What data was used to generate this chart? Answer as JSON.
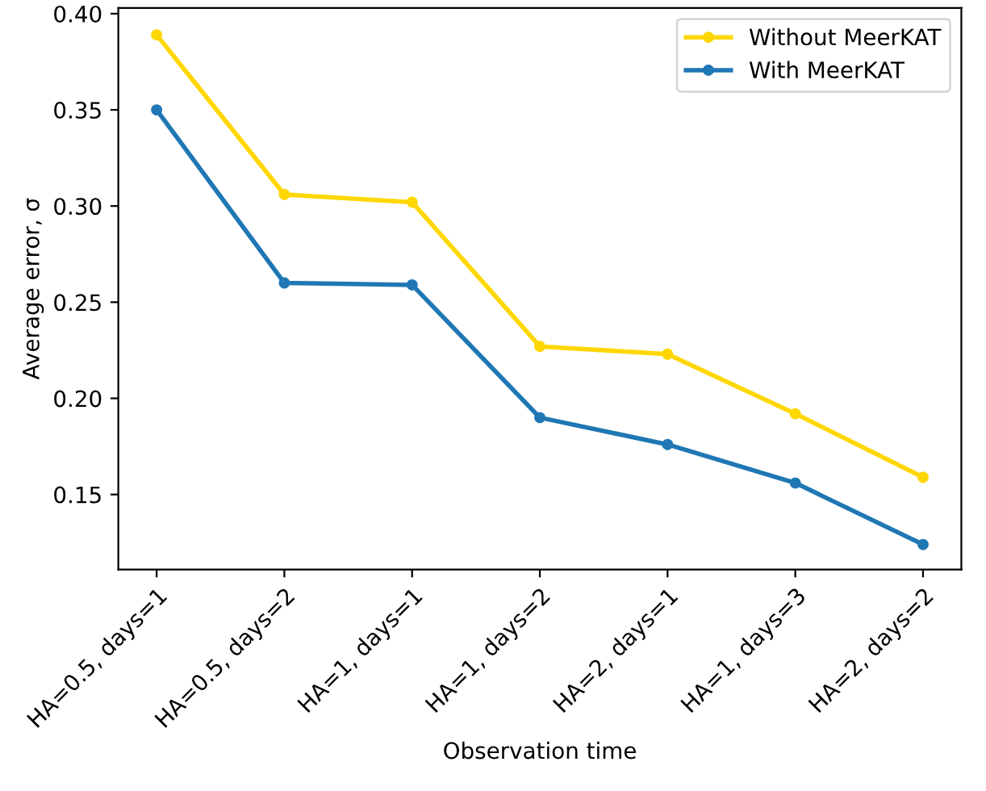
{
  "chart_data": {
    "type": "line",
    "xlabel": "Observation time",
    "ylabel": "Average error, σ",
    "categories": [
      "HA=0.5, days=1",
      "HA=0.5, days=2",
      "HA=1, days=1",
      "HA=1, days=2",
      "HA=2, days=1",
      "HA=1, days=3",
      "HA=2, days=2"
    ],
    "series": [
      {
        "name": "Without MeerKAT",
        "color": "#ffd700",
        "values": [
          0.389,
          0.306,
          0.302,
          0.227,
          0.223,
          0.192,
          0.159
        ]
      },
      {
        "name": "With MeerKAT",
        "color": "#1f77b4",
        "values": [
          0.35,
          0.26,
          0.259,
          0.19,
          0.176,
          0.156,
          0.124
        ]
      }
    ],
    "ylim": [
      0.111,
      0.403
    ],
    "yticks": [
      0.15,
      {
        "value": 0.2,
        "label": "0.20"
      },
      0.25,
      {
        "value": 0.3,
        "label": "0.30"
      },
      0.35,
      {
        "value": 0.4,
        "label": "0.40"
      }
    ],
    "legend": "top right",
    "marker": "circle",
    "grid": false
  }
}
